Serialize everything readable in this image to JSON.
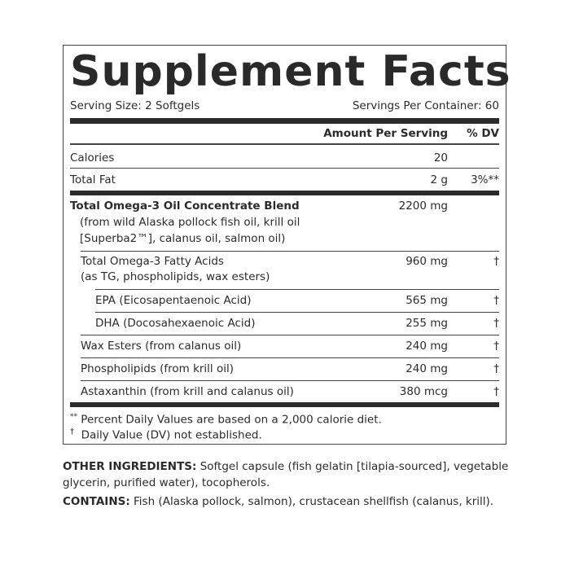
{
  "title": "Supplement Facts",
  "serving_size": "Serving Size: 2 Softgels",
  "servings_per_container": "Servings Per Container: 60",
  "header": {
    "amount": "Amount Per Serving",
    "dv": "% DV"
  },
  "rows": [
    {
      "name": "Calories",
      "amount": "20",
      "dv": ""
    },
    {
      "name": "Total Fat",
      "amount": "2 g",
      "dv": "3%**"
    },
    {
      "name": "Total Omega-3 Oil Concentrate Blend",
      "sub": [
        "(from wild Alaska pollock fish oil, krill oil",
        "[Superba2™], calanus oil, salmon oil)"
      ],
      "amount": "2200 mg",
      "dv": ""
    },
    {
      "name": "Total Omega-3 Fatty Acids",
      "sub": [
        "(as TG, phospholipids, wax esters)"
      ],
      "amount": "960 mg",
      "dv": "†"
    },
    {
      "name": "EPA (Eicosapentaenoic Acid)",
      "amount": "565 mg",
      "dv": "†"
    },
    {
      "name": "DHA (Docosahexaenoic Acid)",
      "amount": "255 mg",
      "dv": "†"
    },
    {
      "name": "Wax Esters (from calanus oil)",
      "amount": "240 mg",
      "dv": "†"
    },
    {
      "name": "Phospholipids (from krill oil)",
      "amount": "240 mg",
      "dv": "†"
    },
    {
      "name": "Astaxanthin (from krill and calanus oil)",
      "amount": "380 mcg",
      "dv": "†"
    }
  ],
  "footnotes": [
    {
      "mark": "**",
      "text": "Percent Daily Values are based on a 2,000 calorie diet."
    },
    {
      "mark": "†",
      "text": "Daily Value (DV) not established."
    }
  ],
  "other_ingredients": {
    "label": "OTHER INGREDIENTS:",
    "text": " Softgel capsule (fish gelatin [tilapia-sourced], vegetable glycerin, purified water), tocopherols."
  },
  "contains": {
    "label": "CONTAINS:",
    "text": " Fish (Alaska pollock, salmon), crustacean shellfish (calanus, krill)."
  }
}
